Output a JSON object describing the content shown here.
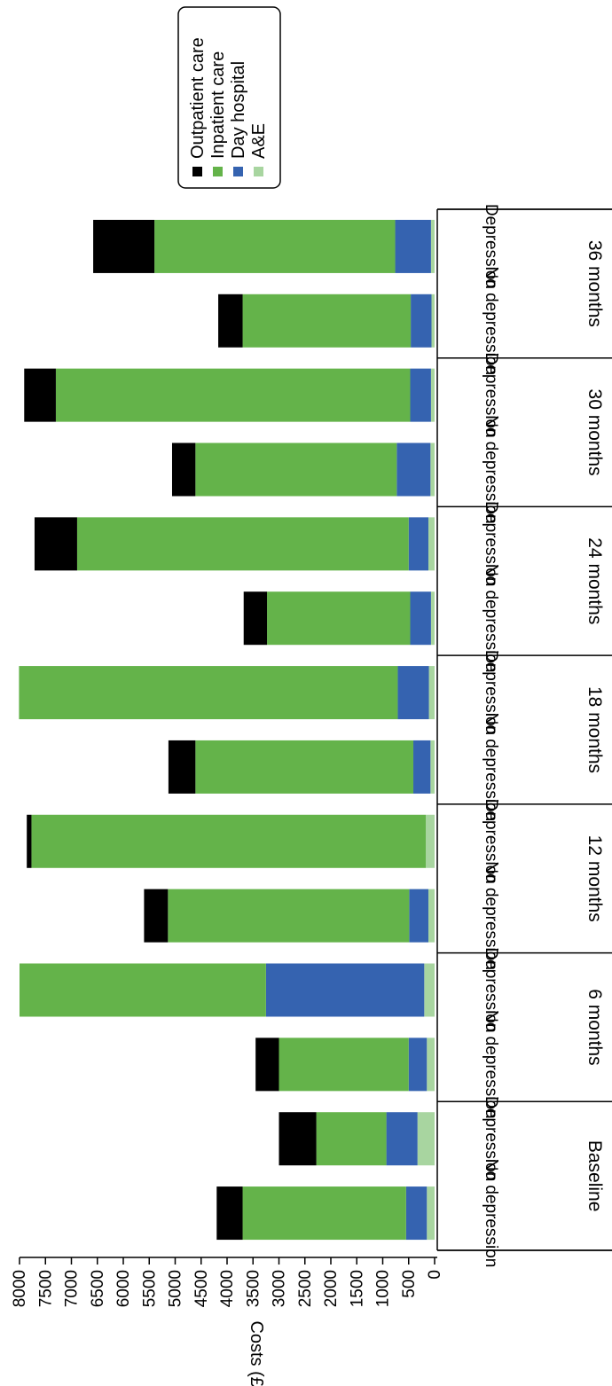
{
  "chart_data": {
    "type": "bar",
    "orientation": "stacked",
    "ylabel": "Costs (£)",
    "ylim": [
      0,
      8000
    ],
    "yticks": [
      0,
      500,
      1000,
      1500,
      2000,
      2500,
      3000,
      3500,
      4000,
      4500,
      5000,
      5500,
      6000,
      6500,
      7000,
      7500,
      8000
    ],
    "groups": [
      "Baseline",
      "6 months",
      "12 months",
      "18 months",
      "24 months",
      "30 months",
      "36 months"
    ],
    "subcategories": [
      "No depression",
      "Depression"
    ],
    "categories": [
      "Baseline / No depression",
      "Baseline / Depression",
      "6 months / No depression",
      "6 months / Depression",
      "12 months / No depression",
      "12 months / Depression",
      "18 months / No depression",
      "18 months / Depression",
      "24 months / No depression",
      "24 months / Depression",
      "30 months / No depression",
      "30 months / Depression",
      "36 months / No depression",
      "36 months / Depression"
    ],
    "series": [
      {
        "name": "A&E",
        "color": "#a8d5a0",
        "values": [
          150,
          330,
          150,
          200,
          120,
          170,
          80,
          110,
          70,
          120,
          80,
          70,
          60,
          70
        ]
      },
      {
        "name": "Day hospital",
        "color": "#3563b0",
        "values": [
          400,
          600,
          350,
          3050,
          370,
          0,
          330,
          600,
          400,
          380,
          650,
          400,
          400,
          690
        ]
      },
      {
        "name": "Inpatient care",
        "color": "#64b34a",
        "values": [
          3150,
          1350,
          2500,
          4750,
          4650,
          7600,
          4200,
          7300,
          2760,
          6390,
          3880,
          6830,
          3240,
          4640
        ]
      },
      {
        "name": "Outpatient care",
        "color": "#000000",
        "values": [
          500,
          720,
          450,
          0,
          460,
          90,
          520,
          0,
          450,
          820,
          450,
          610,
          470,
          1180
        ]
      }
    ],
    "legend_position": "top-right",
    "grid": false
  }
}
